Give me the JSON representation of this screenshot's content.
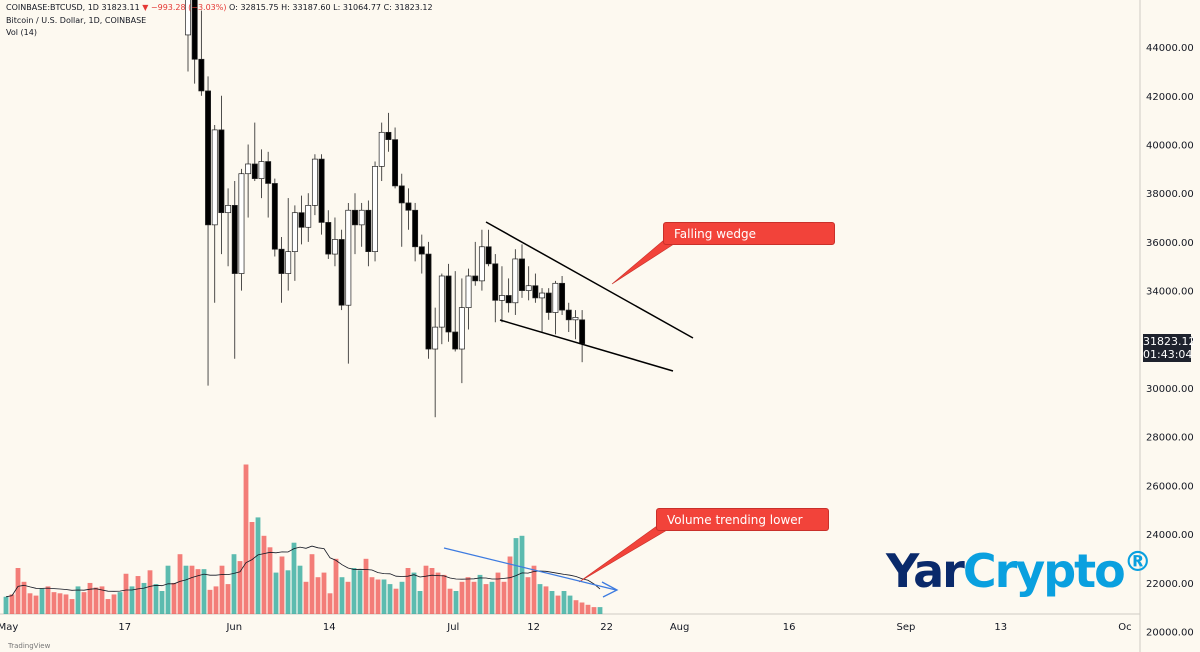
{
  "header": {
    "symbol": "COINBASE:BTCUSD, 1D",
    "last": "31823.11",
    "change": "▼ −993.28 (−3.03%)",
    "open": "O: 32815.75",
    "high": "H: 33187.60",
    "low": "L: 31064.77",
    "close": "C: 31823.12",
    "title": "Bitcoin / U.S. Dollar, 1D, COINBASE",
    "volume_label": "Vol (14)"
  },
  "annotations": {
    "wedge": "Falling wedge",
    "volume": "Volume trending lower"
  },
  "price_tag": {
    "price": "31823.12",
    "countdown": "01:43:04"
  },
  "logo": {
    "part1": "Yar",
    "part2": "Crypto",
    "mark": "®"
  },
  "footer": "TradingView",
  "colors": {
    "up": "#26a69a",
    "down": "#ef5350",
    "candle_up_body": "#ffffff",
    "candle_down_body": "#000000",
    "annotation": "#f2433a",
    "volume_arrow": "#3d7be0"
  },
  "chart_data": {
    "type": "candlestick",
    "y_axis": {
      "ticks": [
        20000,
        22000,
        24000,
        26000,
        28000,
        30000,
        32000,
        34000,
        36000,
        38000,
        40000,
        42000,
        44000
      ],
      "tick_labels": [
        "20000.00",
        "22000.00",
        "24000.00",
        "26000.00",
        "28000.00",
        "30000.00",
        "32000.00",
        "34000.00",
        "36000.00",
        "38000.00",
        "40000.00",
        "42000.00",
        "44000.00"
      ]
    },
    "x_axis": {
      "labels": [
        "May",
        "17",
        "Jun",
        "14",
        "Jul",
        "12",
        "22",
        "Aug",
        "16",
        "Sep",
        "13",
        "Oc"
      ],
      "label_days": [
        0,
        16,
        31,
        44,
        61,
        72,
        82,
        92,
        107,
        123,
        136,
        153
      ]
    },
    "candles": [
      {
        "d": 14,
        "o": 44500,
        "h": 46500,
        "l": 43000,
        "c": 46000
      },
      {
        "d": 15,
        "o": 46000,
        "h": 46500,
        "l": 42500,
        "c": 43500
      },
      {
        "d": 16,
        "o": 43500,
        "h": 45500,
        "l": 42000,
        "c": 42200
      },
      {
        "d": 17,
        "o": 42200,
        "h": 42800,
        "l": 30100,
        "c": 36700
      },
      {
        "d": 18,
        "o": 36700,
        "h": 40800,
        "l": 33500,
        "c": 40600
      },
      {
        "d": 19,
        "o": 40600,
        "h": 42000,
        "l": 35500,
        "c": 37200
      },
      {
        "d": 20,
        "o": 37200,
        "h": 38200,
        "l": 35000,
        "c": 37500
      },
      {
        "d": 21,
        "o": 37500,
        "h": 38500,
        "l": 31200,
        "c": 34700
      },
      {
        "d": 22,
        "o": 34700,
        "h": 39000,
        "l": 34000,
        "c": 38800
      },
      {
        "d": 23,
        "o": 38800,
        "h": 40000,
        "l": 37000,
        "c": 39200
      },
      {
        "d": 24,
        "o": 39200,
        "h": 40900,
        "l": 38500,
        "c": 38600
      },
      {
        "d": 25,
        "o": 38600,
        "h": 39800,
        "l": 37800,
        "c": 39300
      },
      {
        "d": 26,
        "o": 39300,
        "h": 39700,
        "l": 37000,
        "c": 38400
      },
      {
        "d": 27,
        "o": 38400,
        "h": 38600,
        "l": 35400,
        "c": 35700
      },
      {
        "d": 28,
        "o": 35700,
        "h": 36200,
        "l": 33500,
        "c": 34700
      },
      {
        "d": 29,
        "o": 34700,
        "h": 37800,
        "l": 34000,
        "c": 35600
      },
      {
        "d": 30,
        "o": 35600,
        "h": 37500,
        "l": 34400,
        "c": 37200
      },
      {
        "d": 31,
        "o": 37200,
        "h": 37900,
        "l": 35900,
        "c": 36600
      },
      {
        "d": 32,
        "o": 36600,
        "h": 38000,
        "l": 36000,
        "c": 37500
      },
      {
        "d": 33,
        "o": 37500,
        "h": 39600,
        "l": 37100,
        "c": 39400
      },
      {
        "d": 34,
        "o": 39400,
        "h": 39600,
        "l": 36300,
        "c": 36800
      },
      {
        "d": 35,
        "o": 36800,
        "h": 37300,
        "l": 35300,
        "c": 35500
      },
      {
        "d": 36,
        "o": 35500,
        "h": 37000,
        "l": 35000,
        "c": 36100
      },
      {
        "d": 37,
        "o": 36100,
        "h": 36500,
        "l": 33200,
        "c": 33400
      },
      {
        "d": 38,
        "o": 33400,
        "h": 37600,
        "l": 31000,
        "c": 37300
      },
      {
        "d": 39,
        "o": 37300,
        "h": 38000,
        "l": 35500,
        "c": 36700
      },
      {
        "d": 40,
        "o": 36700,
        "h": 37600,
        "l": 35800,
        "c": 37300
      },
      {
        "d": 41,
        "o": 37300,
        "h": 37700,
        "l": 35000,
        "c": 35600
      },
      {
        "d": 42,
        "o": 35600,
        "h": 39300,
        "l": 35200,
        "c": 39100
      },
      {
        "d": 43,
        "o": 39100,
        "h": 40900,
        "l": 38500,
        "c": 40500
      },
      {
        "d": 44,
        "o": 40500,
        "h": 41300,
        "l": 39700,
        "c": 40200
      },
      {
        "d": 45,
        "o": 40200,
        "h": 40700,
        "l": 38200,
        "c": 38300
      },
      {
        "d": 46,
        "o": 38300,
        "h": 38800,
        "l": 35800,
        "c": 37600
      },
      {
        "d": 47,
        "o": 37600,
        "h": 38200,
        "l": 36500,
        "c": 37300
      },
      {
        "d": 48,
        "o": 37300,
        "h": 37600,
        "l": 35200,
        "c": 35800
      },
      {
        "d": 49,
        "o": 35800,
        "h": 36300,
        "l": 34700,
        "c": 35500
      },
      {
        "d": 50,
        "o": 35500,
        "h": 36000,
        "l": 31200,
        "c": 31600
      },
      {
        "d": 51,
        "o": 31600,
        "h": 33300,
        "l": 28800,
        "c": 32500
      },
      {
        "d": 52,
        "o": 32500,
        "h": 34700,
        "l": 31800,
        "c": 34600
      },
      {
        "d": 53,
        "o": 34600,
        "h": 35100,
        "l": 31900,
        "c": 32300
      },
      {
        "d": 54,
        "o": 32300,
        "h": 34800,
        "l": 31500,
        "c": 31600
      },
      {
        "d": 55,
        "o": 31600,
        "h": 34500,
        "l": 30200,
        "c": 33300
      },
      {
        "d": 56,
        "o": 33300,
        "h": 34900,
        "l": 32400,
        "c": 34600
      },
      {
        "d": 57,
        "o": 34600,
        "h": 36000,
        "l": 34200,
        "c": 34400
      },
      {
        "d": 58,
        "o": 34400,
        "h": 36500,
        "l": 34000,
        "c": 35800
      },
      {
        "d": 59,
        "o": 35800,
        "h": 36500,
        "l": 35000,
        "c": 35100
      },
      {
        "d": 60,
        "o": 35100,
        "h": 35500,
        "l": 32700,
        "c": 33600
      },
      {
        "d": 61,
        "o": 33600,
        "h": 35000,
        "l": 32700,
        "c": 33800
      },
      {
        "d": 62,
        "o": 33800,
        "h": 34500,
        "l": 33100,
        "c": 33500
      },
      {
        "d": 63,
        "o": 33500,
        "h": 35700,
        "l": 33000,
        "c": 35300
      },
      {
        "d": 64,
        "o": 35300,
        "h": 35900,
        "l": 33700,
        "c": 34000
      },
      {
        "d": 65,
        "o": 34000,
        "h": 35000,
        "l": 33600,
        "c": 34200
      },
      {
        "d": 66,
        "o": 34200,
        "h": 34700,
        "l": 33500,
        "c": 33700
      },
      {
        "d": 67,
        "o": 33700,
        "h": 34100,
        "l": 32300,
        "c": 33900
      },
      {
        "d": 68,
        "o": 33900,
        "h": 34100,
        "l": 32800,
        "c": 33100
      },
      {
        "d": 69,
        "o": 33100,
        "h": 34400,
        "l": 32200,
        "c": 34300
      },
      {
        "d": 70,
        "o": 34300,
        "h": 34600,
        "l": 33000,
        "c": 33200
      },
      {
        "d": 71,
        "o": 33200,
        "h": 33500,
        "l": 32300,
        "c": 32800
      },
      {
        "d": 72,
        "o": 32800,
        "h": 33200,
        "l": 32000,
        "c": 32900
      },
      {
        "d": 73,
        "o": 32800,
        "h": 33200,
        "l": 31060,
        "c": 31820
      }
    ],
    "volume": [
      {
        "d": 0,
        "v": 15,
        "up": true
      },
      {
        "d": 1,
        "v": 17,
        "up": false
      },
      {
        "d": 2,
        "v": 40,
        "up": false
      },
      {
        "d": 3,
        "v": 28,
        "up": false
      },
      {
        "d": 4,
        "v": 18,
        "up": false
      },
      {
        "d": 5,
        "v": 16,
        "up": false
      },
      {
        "d": 6,
        "v": 22,
        "up": true
      },
      {
        "d": 7,
        "v": 24,
        "up": false
      },
      {
        "d": 8,
        "v": 19,
        "up": false
      },
      {
        "d": 9,
        "v": 18,
        "up": false
      },
      {
        "d": 10,
        "v": 17,
        "up": false
      },
      {
        "d": 11,
        "v": 13,
        "up": false
      },
      {
        "d": 12,
        "v": 24,
        "up": true
      },
      {
        "d": 13,
        "v": 19,
        "up": false
      },
      {
        "d": 14,
        "v": 27,
        "up": false
      },
      {
        "d": 15,
        "v": 23,
        "up": false
      },
      {
        "d": 16,
        "v": 24,
        "up": false
      },
      {
        "d": 17,
        "v": 13,
        "up": false
      },
      {
        "d": 18,
        "v": 17,
        "up": false
      },
      {
        "d": 19,
        "v": 19,
        "up": true
      },
      {
        "d": 20,
        "v": 35,
        "up": false
      },
      {
        "d": 21,
        "v": 24,
        "up": true
      },
      {
        "d": 22,
        "v": 33,
        "up": false
      },
      {
        "d": 23,
        "v": 27,
        "up": true
      },
      {
        "d": 24,
        "v": 38,
        "up": false
      },
      {
        "d": 25,
        "v": 26,
        "up": true
      },
      {
        "d": 26,
        "v": 20,
        "up": true
      },
      {
        "d": 27,
        "v": 42,
        "up": true
      },
      {
        "d": 28,
        "v": 27,
        "up": false
      },
      {
        "d": 29,
        "v": 52,
        "up": false
      },
      {
        "d": 30,
        "v": 42,
        "up": true
      },
      {
        "d": 31,
        "v": 42,
        "up": false
      },
      {
        "d": 32,
        "v": 39,
        "up": false
      },
      {
        "d": 33,
        "v": 39,
        "up": true
      },
      {
        "d": 34,
        "v": 21,
        "up": false
      },
      {
        "d": 35,
        "v": 24,
        "up": false
      },
      {
        "d": 36,
        "v": 42,
        "up": false
      },
      {
        "d": 37,
        "v": 26,
        "up": false
      },
      {
        "d": 38,
        "v": 52,
        "up": true
      },
      {
        "d": 39,
        "v": 46,
        "up": false
      },
      {
        "d": 40,
        "v": 130,
        "up": false
      },
      {
        "d": 41,
        "v": 80,
        "up": false
      },
      {
        "d": 42,
        "v": 84,
        "up": true
      },
      {
        "d": 43,
        "v": 68,
        "up": false
      },
      {
        "d": 44,
        "v": 58,
        "up": false
      },
      {
        "d": 45,
        "v": 36,
        "up": true
      },
      {
        "d": 46,
        "v": 50,
        "up": false
      },
      {
        "d": 47,
        "v": 38,
        "up": true
      },
      {
        "d": 48,
        "v": 62,
        "up": true
      },
      {
        "d": 49,
        "v": 42,
        "up": true
      },
      {
        "d": 50,
        "v": 28,
        "up": false
      },
      {
        "d": 51,
        "v": 52,
        "up": false
      },
      {
        "d": 52,
        "v": 32,
        "up": false
      },
      {
        "d": 53,
        "v": 36,
        "up": false
      },
      {
        "d": 54,
        "v": 18,
        "up": false
      },
      {
        "d": 55,
        "v": 48,
        "up": false
      },
      {
        "d": 56,
        "v": 32,
        "up": true
      },
      {
        "d": 57,
        "v": 28,
        "up": false
      },
      {
        "d": 58,
        "v": 40,
        "up": true
      },
      {
        "d": 59,
        "v": 38,
        "up": true
      },
      {
        "d": 60,
        "v": 48,
        "up": false
      },
      {
        "d": 61,
        "v": 32,
        "up": false
      },
      {
        "d": 62,
        "v": 30,
        "up": false
      },
      {
        "d": 63,
        "v": 30,
        "up": true
      },
      {
        "d": 64,
        "v": 26,
        "up": true
      },
      {
        "d": 65,
        "v": 22,
        "up": false
      },
      {
        "d": 66,
        "v": 28,
        "up": true
      },
      {
        "d": 67,
        "v": 40,
        "up": false
      },
      {
        "d": 68,
        "v": 36,
        "up": true
      },
      {
        "d": 69,
        "v": 20,
        "up": true
      },
      {
        "d": 70,
        "v": 42,
        "up": false
      },
      {
        "d": 71,
        "v": 40,
        "up": false
      },
      {
        "d": 72,
        "v": 36,
        "up": false
      },
      {
        "d": 73,
        "v": 34,
        "up": false
      },
      {
        "d": 74,
        "v": 22,
        "up": false
      },
      {
        "d": 75,
        "v": 20,
        "up": true
      },
      {
        "d": 76,
        "v": 28,
        "up": false
      },
      {
        "d": 77,
        "v": 32,
        "up": false
      },
      {
        "d": 78,
        "v": 28,
        "up": false
      },
      {
        "d": 79,
        "v": 34,
        "up": true
      },
      {
        "d": 80,
        "v": 26,
        "up": false
      },
      {
        "d": 81,
        "v": 28,
        "up": true
      },
      {
        "d": 82,
        "v": 36,
        "up": false
      },
      {
        "d": 83,
        "v": 28,
        "up": false
      },
      {
        "d": 84,
        "v": 50,
        "up": false
      },
      {
        "d": 85,
        "v": 66,
        "up": true
      },
      {
        "d": 86,
        "v": 68,
        "up": true
      },
      {
        "d": 87,
        "v": 32,
        "up": false
      },
      {
        "d": 88,
        "v": 42,
        "up": false
      },
      {
        "d": 89,
        "v": 26,
        "up": true
      },
      {
        "d": 90,
        "v": 24,
        "up": false
      },
      {
        "d": 91,
        "v": 20,
        "up": true
      },
      {
        "d": 92,
        "v": 16,
        "up": false
      },
      {
        "d": 93,
        "v": 20,
        "up": true
      },
      {
        "d": 94,
        "v": 16,
        "up": true
      },
      {
        "d": 95,
        "v": 12,
        "up": false
      },
      {
        "d": 96,
        "v": 10,
        "up": false
      },
      {
        "d": 97,
        "v": 8,
        "up": false
      },
      {
        "d": 98,
        "v": 6,
        "up": false
      },
      {
        "d": 99,
        "v": 6,
        "up": true
      }
    ]
  }
}
